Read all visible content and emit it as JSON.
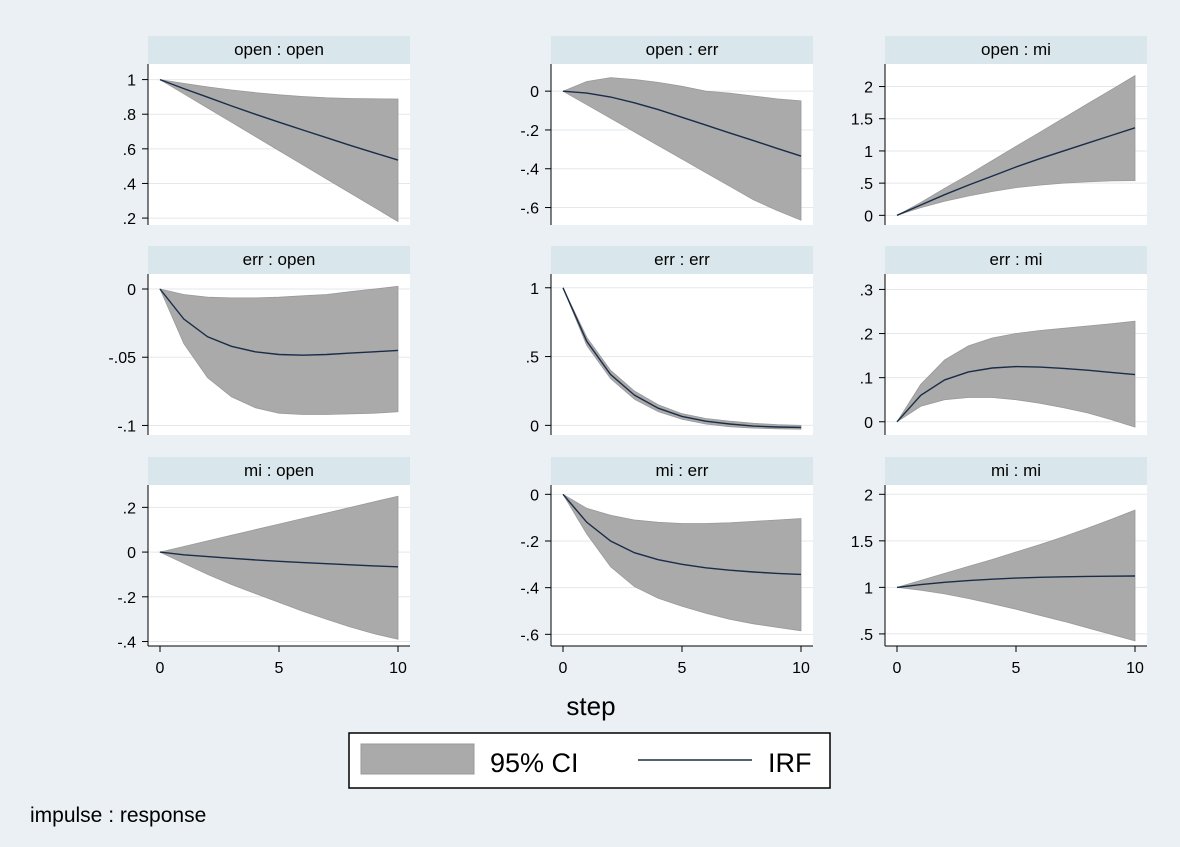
{
  "chart_data": {
    "type": "line",
    "x_label": "step",
    "note": "impulse : response",
    "colors": {
      "ci": "#aaaaaa",
      "irf": "#1a2c48",
      "header": "#d9e6eb",
      "plot_bg": "#ffffff",
      "grid": "#e3e8ec",
      "page_bg": "#eaf0f3"
    },
    "legend": {
      "items": [
        {
          "label": "95% CI",
          "kind": "ci-band"
        },
        {
          "label": "IRF",
          "kind": "irf-line"
        }
      ]
    },
    "x": [
      0,
      1,
      2,
      3,
      4,
      5,
      6,
      7,
      8,
      9,
      10
    ],
    "xlim": [
      0,
      10
    ],
    "x_ticks": [
      0,
      5,
      10
    ],
    "panels": [
      {
        "title": "open : open",
        "ylim": [
          0.16,
          1.09
        ],
        "y_ticks": [
          0.2,
          0.4,
          0.6,
          0.8,
          1
        ],
        "y_tick_labels": [
          ".2",
          ".4",
          ".6",
          ".8",
          "1"
        ],
        "irf": [
          1,
          0.948,
          0.898,
          0.848,
          0.8,
          0.754,
          0.709,
          0.664,
          0.62,
          0.577,
          0.535
        ],
        "lower": [
          1,
          0.918,
          0.836,
          0.754,
          0.672,
          0.59,
          0.508,
          0.426,
          0.344,
          0.262,
          0.18
        ],
        "upper": [
          1,
          0.978,
          0.958,
          0.94,
          0.925,
          0.912,
          0.902,
          0.895,
          0.891,
          0.889,
          0.888
        ]
      },
      {
        "title": "open : err",
        "ylim": [
          -0.69,
          0.14
        ],
        "y_ticks": [
          -0.6,
          -0.4,
          -0.2,
          0
        ],
        "y_tick_labels": [
          "-.6",
          "-.4",
          "-.2",
          "0"
        ],
        "irf": [
          0,
          -0.01,
          -0.03,
          -0.06,
          -0.095,
          -0.135,
          -0.175,
          -0.215,
          -0.255,
          -0.295,
          -0.335
        ],
        "lower": [
          0,
          -0.07,
          -0.14,
          -0.21,
          -0.28,
          -0.35,
          -0.42,
          -0.49,
          -0.56,
          -0.615,
          -0.665
        ],
        "upper": [
          0,
          0.05,
          0.07,
          0.06,
          0.045,
          0.025,
          0.0,
          -0.01,
          -0.025,
          -0.04,
          -0.05
        ]
      },
      {
        "title": "open : mi",
        "ylim": [
          -0.15,
          2.35
        ],
        "y_ticks": [
          0,
          0.5,
          1,
          1.5,
          2
        ],
        "y_tick_labels": [
          "0",
          ".5",
          "1",
          "1.5",
          "2"
        ],
        "irf": [
          0,
          0.16,
          0.32,
          0.47,
          0.61,
          0.75,
          0.88,
          1.0,
          1.12,
          1.24,
          1.36
        ],
        "lower": [
          0,
          0.12,
          0.22,
          0.3,
          0.37,
          0.43,
          0.47,
          0.5,
          0.52,
          0.535,
          0.54
        ],
        "upper": [
          0,
          0.2,
          0.42,
          0.63,
          0.85,
          1.07,
          1.29,
          1.51,
          1.73,
          1.95,
          2.17
        ]
      },
      {
        "title": "err : open",
        "ylim": [
          -0.107,
          0.011
        ],
        "y_ticks": [
          -0.1,
          -0.05,
          0
        ],
        "y_tick_labels": [
          "-.1",
          "-.05",
          "0"
        ],
        "irf": [
          0,
          -0.022,
          -0.035,
          -0.042,
          -0.046,
          -0.048,
          -0.0485,
          -0.048,
          -0.047,
          -0.046,
          -0.045
        ],
        "lower": [
          0,
          -0.04,
          -0.065,
          -0.079,
          -0.087,
          -0.091,
          -0.092,
          -0.092,
          -0.0915,
          -0.091,
          -0.09
        ],
        "upper": [
          0,
          -0.004,
          -0.006,
          -0.0065,
          -0.0065,
          -0.006,
          -0.005,
          -0.004,
          -0.002,
          0.0,
          0.002
        ]
      },
      {
        "title": "err : err",
        "ylim": [
          -0.07,
          1.1
        ],
        "y_ticks": [
          0,
          0.5,
          1
        ],
        "y_tick_labels": [
          "0",
          ".5",
          "1"
        ],
        "irf": [
          1,
          0.61,
          0.37,
          0.22,
          0.125,
          0.065,
          0.03,
          0.01,
          -0.005,
          -0.012,
          -0.015
        ],
        "lower": [
          1,
          0.58,
          0.34,
          0.19,
          0.1,
          0.045,
          0.01,
          -0.01,
          -0.02,
          -0.025,
          -0.028
        ],
        "upper": [
          1,
          0.64,
          0.4,
          0.25,
          0.15,
          0.085,
          0.05,
          0.03,
          0.015,
          0.005,
          0.0
        ]
      },
      {
        "title": "err : mi",
        "ylim": [
          -0.03,
          0.335
        ],
        "y_ticks": [
          0,
          0.1,
          0.2,
          0.3
        ],
        "y_tick_labels": [
          "0",
          ".1",
          ".2",
          ".3"
        ],
        "irf": [
          0,
          0.06,
          0.095,
          0.113,
          0.122,
          0.125,
          0.124,
          0.121,
          0.117,
          0.112,
          0.107
        ],
        "lower": [
          0,
          0.035,
          0.05,
          0.055,
          0.055,
          0.05,
          0.042,
          0.032,
          0.02,
          0.005,
          -0.012
        ],
        "upper": [
          0,
          0.085,
          0.14,
          0.172,
          0.19,
          0.2,
          0.207,
          0.212,
          0.217,
          0.222,
          0.228
        ]
      },
      {
        "title": "mi : open",
        "ylim": [
          -0.42,
          0.3
        ],
        "y_ticks": [
          -0.4,
          -0.2,
          0,
          0.2
        ],
        "y_tick_labels": [
          "-.4",
          "-.2",
          "0",
          ".2"
        ],
        "irf": [
          0,
          -0.012,
          -0.02,
          -0.028,
          -0.035,
          -0.041,
          -0.047,
          -0.052,
          -0.057,
          -0.062,
          -0.066
        ],
        "lower": [
          0,
          -0.05,
          -0.1,
          -0.145,
          -0.185,
          -0.225,
          -0.265,
          -0.3,
          -0.335,
          -0.365,
          -0.39
        ],
        "upper": [
          0,
          0.025,
          0.05,
          0.075,
          0.1,
          0.125,
          0.15,
          0.175,
          0.2,
          0.225,
          0.25
        ]
      },
      {
        "title": "mi : err",
        "ylim": [
          -0.65,
          0.04
        ],
        "y_ticks": [
          -0.6,
          -0.4,
          -0.2,
          0
        ],
        "y_tick_labels": [
          "-.6",
          "-.4",
          "-.2",
          "0"
        ],
        "irf": [
          0,
          -0.12,
          -0.2,
          -0.25,
          -0.28,
          -0.3,
          -0.315,
          -0.325,
          -0.333,
          -0.339,
          -0.343
        ],
        "lower": [
          0,
          -0.17,
          -0.31,
          -0.395,
          -0.445,
          -0.48,
          -0.51,
          -0.535,
          -0.555,
          -0.57,
          -0.585
        ],
        "upper": [
          0,
          -0.06,
          -0.09,
          -0.11,
          -0.12,
          -0.125,
          -0.125,
          -0.122,
          -0.116,
          -0.11,
          -0.104
        ]
      },
      {
        "title": "mi : mi",
        "ylim": [
          0.37,
          2.1
        ],
        "y_ticks": [
          0.5,
          1,
          1.5,
          2
        ],
        "y_tick_labels": [
          ".5",
          "1",
          "1.5",
          "2"
        ],
        "irf": [
          1,
          1.03,
          1.055,
          1.073,
          1.088,
          1.1,
          1.108,
          1.114,
          1.118,
          1.12,
          1.122
        ],
        "lower": [
          1,
          0.97,
          0.93,
          0.88,
          0.825,
          0.765,
          0.7,
          0.635,
          0.565,
          0.495,
          0.425
        ],
        "upper": [
          1,
          1.075,
          1.15,
          1.225,
          1.3,
          1.38,
          1.46,
          1.545,
          1.635,
          1.73,
          1.83
        ]
      }
    ]
  }
}
